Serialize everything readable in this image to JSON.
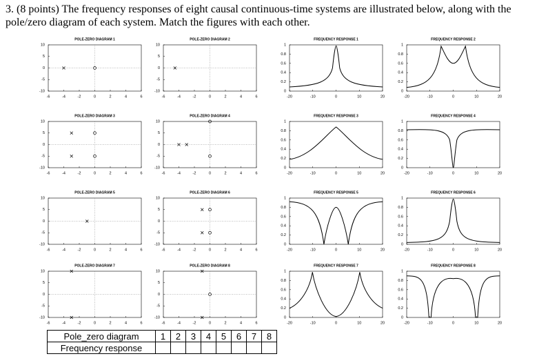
{
  "question": "3. (8 points) The frequency responses of eight causal continuous-time systems are illustrated below, along with the pole/zero diagram of each system. Match the figures with each other.",
  "pz_axes": {
    "xlim": [
      -6,
      6
    ],
    "ylim": [
      -10,
      10
    ],
    "xticks": [
      -6,
      -4,
      -2,
      0,
      2,
      4,
      6
    ],
    "yticks": [
      -10,
      -5,
      0,
      5,
      10
    ]
  },
  "fr_axes": {
    "xlim": [
      -20,
      20
    ],
    "ylim": [
      0,
      1
    ],
    "xticks": [
      -20,
      -10,
      0,
      10,
      20
    ],
    "yticks": [
      0,
      0.2,
      0.4,
      0.6,
      0.8,
      1
    ]
  },
  "pole_zero_diagrams": [
    {
      "title": "POLE-ZERO DIAGRAM 1",
      "poles": [
        [
          -4,
          0
        ]
      ],
      "zeros": [
        [
          0,
          0
        ]
      ]
    },
    {
      "title": "POLE-ZERO DIAGRAM 2",
      "poles": [
        [
          -4.5,
          0
        ]
      ],
      "zeros": []
    },
    {
      "title": "POLE-ZERO DIAGRAM 3",
      "poles": [
        [
          -3,
          5
        ],
        [
          -3,
          -5
        ]
      ],
      "zeros": [
        [
          0,
          5
        ],
        [
          0,
          -5
        ]
      ]
    },
    {
      "title": "POLE-ZERO DIAGRAM 4",
      "poles": [
        [
          -4,
          0
        ],
        [
          -3,
          0
        ]
      ],
      "zeros": [
        [
          0,
          10
        ],
        [
          0,
          -5
        ]
      ]
    },
    {
      "title": "POLE-ZERO DIAGRAM 5",
      "poles": [
        [
          -1,
          0
        ]
      ],
      "zeros": []
    },
    {
      "title": "POLE-ZERO DIAGRAM 6",
      "poles": [
        [
          -1,
          5
        ],
        [
          -1,
          -5
        ]
      ],
      "zeros": [
        [
          0,
          5
        ],
        [
          0,
          -5
        ]
      ]
    },
    {
      "title": "POLE-ZERO DIAGRAM 7",
      "poles": [
        [
          -3,
          10
        ],
        [
          -3,
          -10
        ]
      ],
      "zeros": []
    },
    {
      "title": "POLE-ZERO DIAGRAM 8",
      "poles": [
        [
          -1,
          10
        ],
        [
          -1,
          -10
        ]
      ],
      "zeros": [
        [
          0,
          0
        ]
      ]
    }
  ],
  "frequency_responses": [
    {
      "title": "FREQUENCY RESPONSE 1"
    },
    {
      "title": "FREQUENCY RESPONSE 2"
    },
    {
      "title": "FREQUENCY RESPONSE 3"
    },
    {
      "title": "FREQUENCY RESPONSE 4"
    },
    {
      "title": "FREQUENCY RESPONSE 5"
    },
    {
      "title": "FREQUENCY RESPONSE 6"
    },
    {
      "title": "FREQUENCY RESPONSE 7"
    },
    {
      "title": "FREQUENCY RESPONSE 8"
    }
  ],
  "table": {
    "row_labels": [
      "Pole_zero diagram",
      "Frequency response"
    ],
    "columns": [
      "1",
      "2",
      "3",
      "4",
      "5",
      "6",
      "7",
      "8"
    ]
  }
}
